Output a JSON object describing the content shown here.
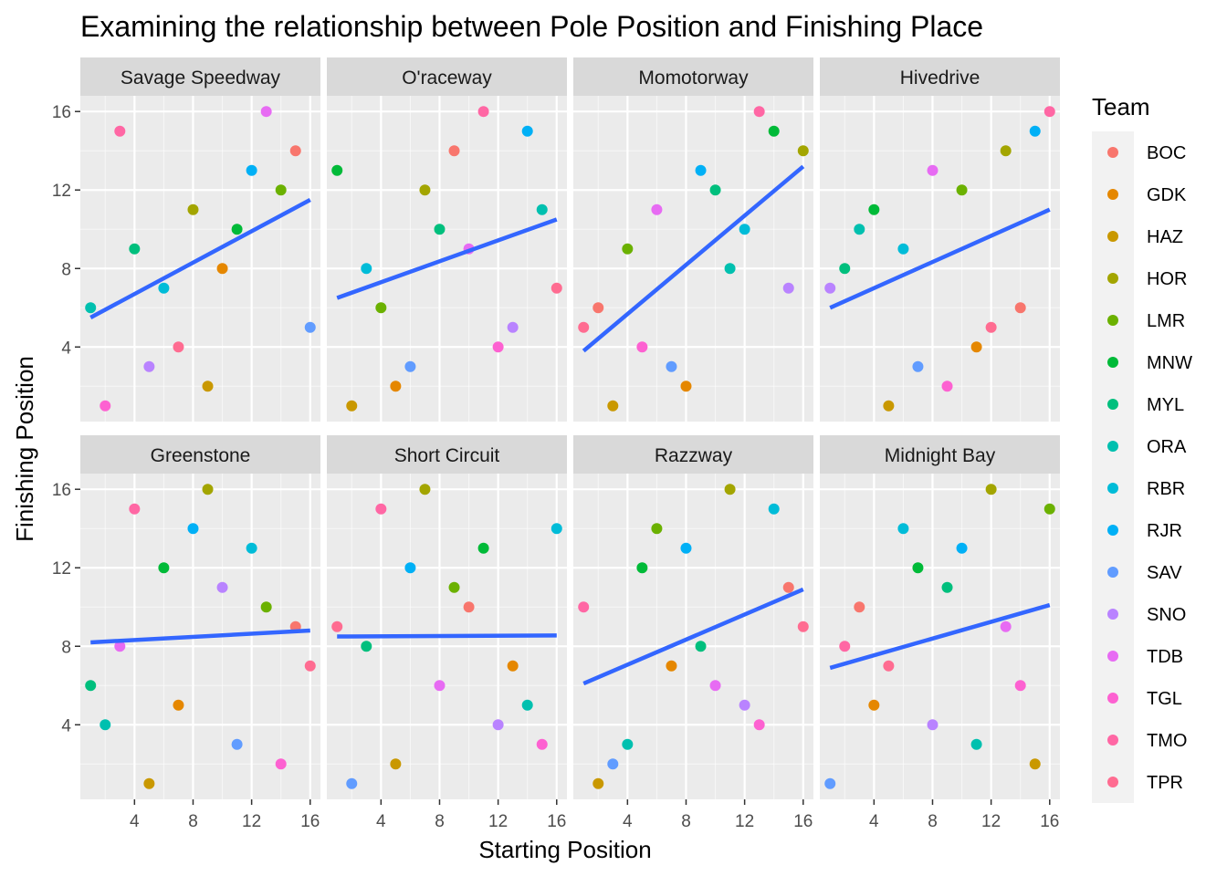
{
  "chart_data": {
    "type": "scatter",
    "title": "Examining the relationship between Pole Position and Finishing Place",
    "xlabel": "Starting Position",
    "ylabel": "Finishing Position",
    "xlim": [
      0.3,
      16.7
    ],
    "ylim": [
      0.2,
      16.8
    ],
    "x_ticks": [
      4,
      8,
      12,
      16
    ],
    "y_ticks": [
      4,
      8,
      12,
      16
    ],
    "grid": true,
    "facet_layout": "2 rows x 4 columns",
    "legend": {
      "title": "Team",
      "position": "right",
      "entries": [
        {
          "team": "BOC",
          "color": "#F8766D"
        },
        {
          "team": "GDK",
          "color": "#E58700"
        },
        {
          "team": "HAZ",
          "color": "#C99800"
        },
        {
          "team": "HOR",
          "color": "#A3A500"
        },
        {
          "team": "LMR",
          "color": "#6BB100"
        },
        {
          "team": "MNW",
          "color": "#00BA38"
        },
        {
          "team": "MYL",
          "color": "#00BF7D"
        },
        {
          "team": "ORA",
          "color": "#00C0AF"
        },
        {
          "team": "RBR",
          "color": "#00BCD8"
        },
        {
          "team": "RJR",
          "color": "#00B0F6"
        },
        {
          "team": "SAV",
          "color": "#619CFF"
        },
        {
          "team": "SNO",
          "color": "#B983FF"
        },
        {
          "team": "TDB",
          "color": "#E76BF3"
        },
        {
          "team": "TGL",
          "color": "#FD61D1"
        },
        {
          "team": "TMO",
          "color": "#FF67A4"
        },
        {
          "team": "TPR",
          "color": "#FF6C91"
        }
      ]
    },
    "trend_line_color": "#3366FF",
    "facets": [
      {
        "name": "Savage Speedway",
        "trend": {
          "x": [
            1,
            16
          ],
          "y": [
            5.5,
            11.5
          ]
        },
        "points": [
          {
            "team": "BOC",
            "x": 15,
            "y": 14
          },
          {
            "team": "GDK",
            "x": 10,
            "y": 8
          },
          {
            "team": "HAZ",
            "x": 9,
            "y": 2
          },
          {
            "team": "HOR",
            "x": 8,
            "y": 11
          },
          {
            "team": "LMR",
            "x": 14,
            "y": 12
          },
          {
            "team": "MNW",
            "x": 11,
            "y": 10
          },
          {
            "team": "MYL",
            "x": 4,
            "y": 9
          },
          {
            "team": "ORA",
            "x": 1,
            "y": 6
          },
          {
            "team": "RBR",
            "x": 6,
            "y": 7
          },
          {
            "team": "RJR",
            "x": 12,
            "y": 13
          },
          {
            "team": "SAV",
            "x": 16,
            "y": 5
          },
          {
            "team": "SNO",
            "x": 5,
            "y": 3
          },
          {
            "team": "TDB",
            "x": 13,
            "y": 16
          },
          {
            "team": "TGL",
            "x": 2,
            "y": 1
          },
          {
            "team": "TMO",
            "x": 3,
            "y": 15
          },
          {
            "team": "TPR",
            "x": 7,
            "y": 4
          }
        ]
      },
      {
        "name": "O'raceway",
        "trend": {
          "x": [
            1,
            16
          ],
          "y": [
            6.5,
            10.5
          ]
        },
        "points": [
          {
            "team": "BOC",
            "x": 9,
            "y": 14
          },
          {
            "team": "GDK",
            "x": 5,
            "y": 2
          },
          {
            "team": "HAZ",
            "x": 2,
            "y": 1
          },
          {
            "team": "HOR",
            "x": 7,
            "y": 12
          },
          {
            "team": "LMR",
            "x": 4,
            "y": 6
          },
          {
            "team": "MNW",
            "x": 1,
            "y": 13
          },
          {
            "team": "MYL",
            "x": 8,
            "y": 10
          },
          {
            "team": "ORA",
            "x": 15,
            "y": 11
          },
          {
            "team": "RBR",
            "x": 3,
            "y": 8
          },
          {
            "team": "RJR",
            "x": 14,
            "y": 15
          },
          {
            "team": "SAV",
            "x": 6,
            "y": 3
          },
          {
            "team": "SNO",
            "x": 13,
            "y": 5
          },
          {
            "team": "TDB",
            "x": 10,
            "y": 9
          },
          {
            "team": "TGL",
            "x": 12,
            "y": 4
          },
          {
            "team": "TMO",
            "x": 11,
            "y": 16
          },
          {
            "team": "TPR",
            "x": 16,
            "y": 7
          }
        ]
      },
      {
        "name": "Momotorway",
        "trend": {
          "x": [
            1,
            16
          ],
          "y": [
            3.8,
            13.2
          ]
        },
        "points": [
          {
            "team": "BOC",
            "x": 2,
            "y": 6
          },
          {
            "team": "GDK",
            "x": 8,
            "y": 2
          },
          {
            "team": "HAZ",
            "x": 3,
            "y": 1
          },
          {
            "team": "HOR",
            "x": 16,
            "y": 14
          },
          {
            "team": "LMR",
            "x": 4,
            "y": 9
          },
          {
            "team": "MNW",
            "x": 14,
            "y": 15
          },
          {
            "team": "MYL",
            "x": 10,
            "y": 12
          },
          {
            "team": "ORA",
            "x": 11,
            "y": 8
          },
          {
            "team": "RBR",
            "x": 12,
            "y": 10
          },
          {
            "team": "RJR",
            "x": 9,
            "y": 13
          },
          {
            "team": "SAV",
            "x": 7,
            "y": 3
          },
          {
            "team": "SNO",
            "x": 15,
            "y": 7
          },
          {
            "team": "TDB",
            "x": 6,
            "y": 11
          },
          {
            "team": "TGL",
            "x": 5,
            "y": 4
          },
          {
            "team": "TMO",
            "x": 13,
            "y": 16
          },
          {
            "team": "TPR",
            "x": 1,
            "y": 5
          }
        ]
      },
      {
        "name": "Hivedrive",
        "trend": {
          "x": [
            1,
            16
          ],
          "y": [
            6.0,
            11.0
          ]
        },
        "points": [
          {
            "team": "BOC",
            "x": 14,
            "y": 6
          },
          {
            "team": "GDK",
            "x": 11,
            "y": 4
          },
          {
            "team": "HAZ",
            "x": 5,
            "y": 1
          },
          {
            "team": "HOR",
            "x": 13,
            "y": 14
          },
          {
            "team": "LMR",
            "x": 10,
            "y": 12
          },
          {
            "team": "MNW",
            "x": 4,
            "y": 11
          },
          {
            "team": "MYL",
            "x": 2,
            "y": 8
          },
          {
            "team": "ORA",
            "x": 3,
            "y": 10
          },
          {
            "team": "RBR",
            "x": 6,
            "y": 9
          },
          {
            "team": "RJR",
            "x": 15,
            "y": 15
          },
          {
            "team": "SAV",
            "x": 7,
            "y": 3
          },
          {
            "team": "SNO",
            "x": 1,
            "y": 7
          },
          {
            "team": "TDB",
            "x": 8,
            "y": 13
          },
          {
            "team": "TGL",
            "x": 9,
            "y": 2
          },
          {
            "team": "TMO",
            "x": 16,
            "y": 16
          },
          {
            "team": "TPR",
            "x": 12,
            "y": 5
          }
        ]
      },
      {
        "name": "Greenstone",
        "trend": {
          "x": [
            1,
            16
          ],
          "y": [
            8.2,
            8.8
          ]
        },
        "points": [
          {
            "team": "BOC",
            "x": 15,
            "y": 9
          },
          {
            "team": "GDK",
            "x": 7,
            "y": 5
          },
          {
            "team": "HAZ",
            "x": 5,
            "y": 1
          },
          {
            "team": "HOR",
            "x": 9,
            "y": 16
          },
          {
            "team": "LMR",
            "x": 13,
            "y": 10
          },
          {
            "team": "MNW",
            "x": 6,
            "y": 12
          },
          {
            "team": "MYL",
            "x": 1,
            "y": 6
          },
          {
            "team": "ORA",
            "x": 2,
            "y": 4
          },
          {
            "team": "RBR",
            "x": 12,
            "y": 13
          },
          {
            "team": "RJR",
            "x": 8,
            "y": 14
          },
          {
            "team": "SAV",
            "x": 11,
            "y": 3
          },
          {
            "team": "SNO",
            "x": 10,
            "y": 11
          },
          {
            "team": "TDB",
            "x": 3,
            "y": 8
          },
          {
            "team": "TGL",
            "x": 14,
            "y": 2
          },
          {
            "team": "TMO",
            "x": 4,
            "y": 15
          },
          {
            "team": "TPR",
            "x": 16,
            "y": 7
          }
        ]
      },
      {
        "name": "Short Circuit",
        "trend": {
          "x": [
            1,
            16
          ],
          "y": [
            8.5,
            8.55
          ]
        },
        "points": [
          {
            "team": "BOC",
            "x": 10,
            "y": 10
          },
          {
            "team": "GDK",
            "x": 13,
            "y": 7
          },
          {
            "team": "HAZ",
            "x": 5,
            "y": 2
          },
          {
            "team": "HOR",
            "x": 7,
            "y": 16
          },
          {
            "team": "LMR",
            "x": 9,
            "y": 11
          },
          {
            "team": "MNW",
            "x": 11,
            "y": 13
          },
          {
            "team": "MYL",
            "x": 3,
            "y": 8
          },
          {
            "team": "ORA",
            "x": 14,
            "y": 5
          },
          {
            "team": "RBR",
            "x": 16,
            "y": 14
          },
          {
            "team": "RJR",
            "x": 6,
            "y": 12
          },
          {
            "team": "SAV",
            "x": 2,
            "y": 1
          },
          {
            "team": "SNO",
            "x": 12,
            "y": 4
          },
          {
            "team": "TDB",
            "x": 8,
            "y": 6
          },
          {
            "team": "TGL",
            "x": 15,
            "y": 3
          },
          {
            "team": "TMO",
            "x": 4,
            "y": 15
          },
          {
            "team": "TPR",
            "x": 1,
            "y": 9
          }
        ]
      },
      {
        "name": "Razzway",
        "trend": {
          "x": [
            1,
            16
          ],
          "y": [
            6.1,
            10.9
          ]
        },
        "points": [
          {
            "team": "BOC",
            "x": 15,
            "y": 11
          },
          {
            "team": "GDK",
            "x": 7,
            "y": 7
          },
          {
            "team": "HAZ",
            "x": 2,
            "y": 1
          },
          {
            "team": "HOR",
            "x": 11,
            "y": 16
          },
          {
            "team": "LMR",
            "x": 6,
            "y": 14
          },
          {
            "team": "MNW",
            "x": 5,
            "y": 12
          },
          {
            "team": "MYL",
            "x": 9,
            "y": 8
          },
          {
            "team": "ORA",
            "x": 4,
            "y": 3
          },
          {
            "team": "RBR",
            "x": 14,
            "y": 15
          },
          {
            "team": "RJR",
            "x": 8,
            "y": 13
          },
          {
            "team": "SAV",
            "x": 3,
            "y": 2
          },
          {
            "team": "SNO",
            "x": 12,
            "y": 5
          },
          {
            "team": "TDB",
            "x": 10,
            "y": 6
          },
          {
            "team": "TGL",
            "x": 13,
            "y": 4
          },
          {
            "team": "TMO",
            "x": 1,
            "y": 10
          },
          {
            "team": "TPR",
            "x": 16,
            "y": 9
          }
        ]
      },
      {
        "name": "Midnight Bay",
        "trend": {
          "x": [
            1,
            16
          ],
          "y": [
            6.9,
            10.1
          ]
        },
        "points": [
          {
            "team": "BOC",
            "x": 3,
            "y": 10
          },
          {
            "team": "GDK",
            "x": 4,
            "y": 5
          },
          {
            "team": "HAZ",
            "x": 15,
            "y": 2
          },
          {
            "team": "HOR",
            "x": 12,
            "y": 16
          },
          {
            "team": "LMR",
            "x": 16,
            "y": 15
          },
          {
            "team": "MNW",
            "x": 7,
            "y": 12
          },
          {
            "team": "MYL",
            "x": 9,
            "y": 11
          },
          {
            "team": "ORA",
            "x": 11,
            "y": 3
          },
          {
            "team": "RBR",
            "x": 6,
            "y": 14
          },
          {
            "team": "RJR",
            "x": 10,
            "y": 13
          },
          {
            "team": "SAV",
            "x": 1,
            "y": 1
          },
          {
            "team": "SNO",
            "x": 8,
            "y": 4
          },
          {
            "team": "TDB",
            "x": 13,
            "y": 9
          },
          {
            "team": "TGL",
            "x": 14,
            "y": 6
          },
          {
            "team": "TMO",
            "x": 2,
            "y": 8
          },
          {
            "team": "TPR",
            "x": 5,
            "y": 7
          }
        ]
      }
    ]
  }
}
